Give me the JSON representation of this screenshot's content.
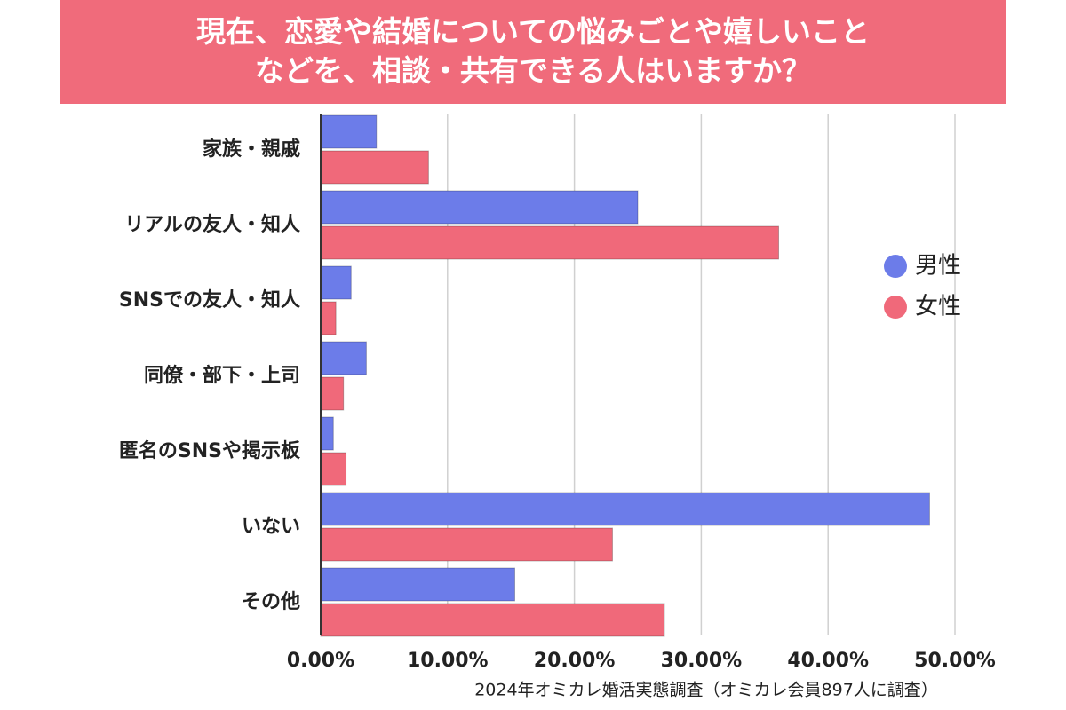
{
  "chart_data": {
    "type": "hbar",
    "title": "現在、恋愛や結婚についての悩みごとや嬉しいこと\nなどを、相談・共有できる人はいますか？",
    "categories": [
      "家族・親戚",
      "リアルの友人・知人",
      "SNSでの友人・知人",
      "同僚・部下・上司",
      "匿名のSNSや掲示板",
      "いない",
      "その他"
    ],
    "series": [
      {
        "name": "男性",
        "color": "#6c7ce9",
        "values": [
          4.4,
          25.0,
          2.4,
          3.6,
          1.0,
          48.0,
          15.3
        ]
      },
      {
        "name": "女性",
        "color": "#f0697a",
        "values": [
          8.5,
          36.1,
          1.2,
          1.8,
          2.0,
          23.0,
          27.1
        ]
      }
    ],
    "xlim": [
      0,
      50
    ],
    "xticks": [
      {
        "value": 0,
        "label": "0.00%"
      },
      {
        "value": 10,
        "label": "10.00%"
      },
      {
        "value": 20,
        "label": "20.00%"
      },
      {
        "value": 30,
        "label": "30.00%"
      },
      {
        "value": 40,
        "label": "40.00%"
      },
      {
        "value": 50,
        "label": "50.00%"
      }
    ],
    "grid": true,
    "legend": "right",
    "source": "2024年オミカレ婚活実態調査（オミカレ会員897人に調査）"
  }
}
